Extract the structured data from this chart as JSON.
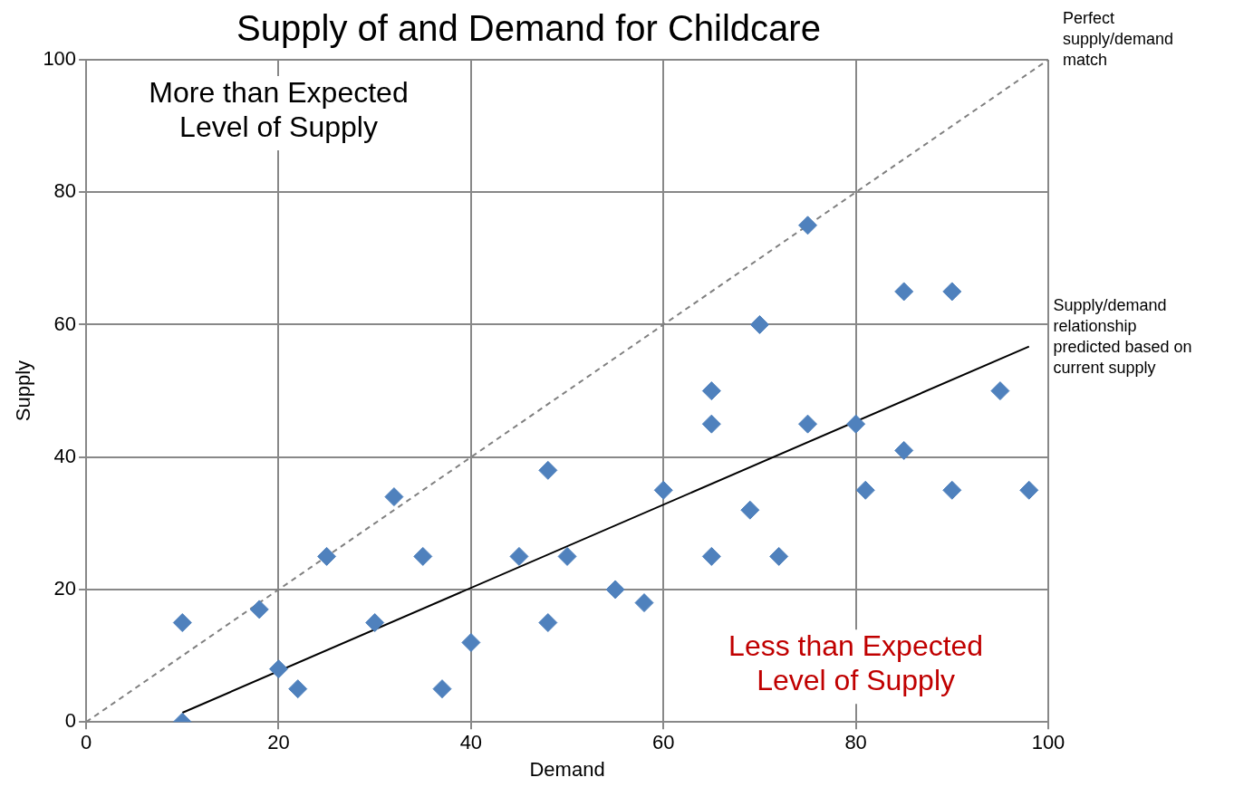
{
  "chart_data": {
    "type": "scatter",
    "title": "Supply of and Demand for Childcare",
    "xlabel": "Demand",
    "ylabel": "Supply",
    "xlim": [
      0,
      100
    ],
    "xticks": [
      0,
      20,
      40,
      60,
      80,
      100
    ],
    "ylim": [
      0,
      100
    ],
    "yticks": [
      0,
      20,
      40,
      60,
      80,
      100
    ],
    "grid": true,
    "legend": false,
    "marker": "diamond",
    "series": [
      {
        "type": "scatter",
        "color": "#4f81bd",
        "x": [
          10,
          10,
          18,
          20,
          22,
          25,
          30,
          32,
          35,
          37,
          40,
          45,
          48,
          48,
          50,
          55,
          58,
          60,
          65,
          65,
          65,
          69,
          70,
          72,
          75,
          75,
          80,
          81,
          85,
          85,
          90,
          90,
          95,
          98
        ],
        "values": [
          15,
          0,
          17,
          8,
          5,
          25,
          15,
          34,
          25,
          5,
          12,
          25,
          38,
          15,
          25,
          20,
          18,
          35,
          50,
          45,
          25,
          32,
          60,
          25,
          75,
          45,
          45,
          35,
          65,
          41,
          65,
          35,
          50,
          35
        ]
      },
      {
        "type": "line",
        "color": "#808080",
        "line_style": "dashed",
        "marker": "none",
        "x": [
          0,
          100
        ],
        "values": [
          0,
          100
        ]
      },
      {
        "type": "line",
        "color": "#000000",
        "line_style": "solid",
        "marker": "none",
        "x": [
          10,
          98
        ],
        "values": [
          1.4,
          56.7
        ]
      }
    ],
    "annotations": [
      "More than Expected Level of Supply",
      "Less than Expected Level of Supply",
      {
        "text": "Perfect supply/demand match",
        "x": 100,
        "y": 100
      },
      {
        "text": "Supply/demand relationship predicted based on current supply",
        "x": 98,
        "y": 56.7
      }
    ]
  }
}
